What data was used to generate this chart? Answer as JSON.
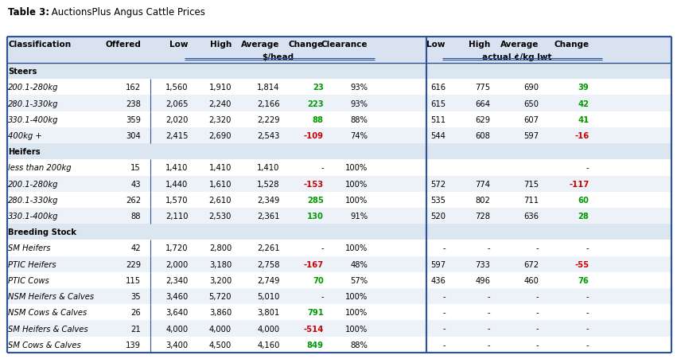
{
  "title_bold": "Table 3:",
  "title_regular": " AuctionsPlus Angus Cattle Prices",
  "col_headers": [
    "Classification",
    "Offered",
    "Low",
    "High",
    "Average",
    "Change",
    "Clearance",
    "Low",
    "High",
    "Average",
    "Change"
  ],
  "sub_head1": "$/head",
  "sub_head2": "actual ¢/kg lwt",
  "sections": [
    {
      "name": "Steers",
      "rows": [
        {
          "class": "200.1-280kg",
          "offered": "162",
          "low": "1,560",
          "high": "1,910",
          "avg": "1,814",
          "change": "23",
          "clearance": "93%",
          "low2": "616",
          "high2": "775",
          "avg2": "690",
          "change2": "39",
          "cc": "#009900",
          "cc2": "#009900"
        },
        {
          "class": "280.1-330kg",
          "offered": "238",
          "low": "2,065",
          "high": "2,240",
          "avg": "2,166",
          "change": "223",
          "clearance": "93%",
          "low2": "615",
          "high2": "664",
          "avg2": "650",
          "change2": "42",
          "cc": "#009900",
          "cc2": "#009900"
        },
        {
          "class": "330.1-400kg",
          "offered": "359",
          "low": "2,020",
          "high": "2,320",
          "avg": "2,229",
          "change": "88",
          "clearance": "88%",
          "low2": "511",
          "high2": "629",
          "avg2": "607",
          "change2": "41",
          "cc": "#009900",
          "cc2": "#009900"
        },
        {
          "class": "400kg +",
          "offered": "304",
          "low": "2,415",
          "high": "2,690",
          "avg": "2,543",
          "change": "-109",
          "clearance": "74%",
          "low2": "544",
          "high2": "608",
          "avg2": "597",
          "change2": "-16",
          "cc": "#cc0000",
          "cc2": "#cc0000"
        }
      ]
    },
    {
      "name": "Heifers",
      "rows": [
        {
          "class": "less than 200kg",
          "offered": "15",
          "low": "1,410",
          "high": "1,410",
          "avg": "1,410",
          "change": "-",
          "clearance": "100%",
          "low2": "",
          "high2": "",
          "avg2": "",
          "change2": "-",
          "cc": "#000000",
          "cc2": "#000000"
        },
        {
          "class": "200.1-280kg",
          "offered": "43",
          "low": "1,440",
          "high": "1,610",
          "avg": "1,528",
          "change": "-153",
          "clearance": "100%",
          "low2": "572",
          "high2": "774",
          "avg2": "715",
          "change2": "-117",
          "cc": "#cc0000",
          "cc2": "#cc0000"
        },
        {
          "class": "280.1-330kg",
          "offered": "262",
          "low": "1,570",
          "high": "2,610",
          "avg": "2,349",
          "change": "285",
          "clearance": "100%",
          "low2": "535",
          "high2": "802",
          "avg2": "711",
          "change2": "60",
          "cc": "#009900",
          "cc2": "#009900"
        },
        {
          "class": "330.1-400kg",
          "offered": "88",
          "low": "2,110",
          "high": "2,530",
          "avg": "2,361",
          "change": "130",
          "clearance": "91%",
          "low2": "520",
          "high2": "728",
          "avg2": "636",
          "change2": "28",
          "cc": "#009900",
          "cc2": "#009900"
        }
      ]
    },
    {
      "name": "Breeding Stock",
      "rows": [
        {
          "class": "SM Heifers",
          "offered": "42",
          "low": "1,720",
          "high": "2,800",
          "avg": "2,261",
          "change": "-",
          "clearance": "100%",
          "low2": "-",
          "high2": "-",
          "avg2": "-",
          "change2": "-",
          "cc": "#000000",
          "cc2": "#000000"
        },
        {
          "class": "PTIC Heifers",
          "offered": "229",
          "low": "2,000",
          "high": "3,180",
          "avg": "2,758",
          "change": "-167",
          "clearance": "48%",
          "low2": "597",
          "high2": "733",
          "avg2": "672",
          "change2": "-55",
          "cc": "#cc0000",
          "cc2": "#cc0000"
        },
        {
          "class": "PTIC Cows",
          "offered": "115",
          "low": "2,340",
          "high": "3,200",
          "avg": "2,749",
          "change": "70",
          "clearance": "57%",
          "low2": "436",
          "high2": "496",
          "avg2": "460",
          "change2": "76",
          "cc": "#009900",
          "cc2": "#009900"
        },
        {
          "class": "NSM Heifers & Calves",
          "offered": "35",
          "low": "3,460",
          "high": "5,720",
          "avg": "5,010",
          "change": "-",
          "clearance": "100%",
          "low2": "-",
          "high2": "-",
          "avg2": "-",
          "change2": "-",
          "cc": "#000000",
          "cc2": "#000000"
        },
        {
          "class": "NSM Cows & Calves",
          "offered": "26",
          "low": "3,640",
          "high": "3,860",
          "avg": "3,801",
          "change": "791",
          "clearance": "100%",
          "low2": "-",
          "high2": "-",
          "avg2": "-",
          "change2": "-",
          "cc": "#009900",
          "cc2": "#000000"
        },
        {
          "class": "SM Heifers & Calves",
          "offered": "21",
          "low": "4,000",
          "high": "4,000",
          "avg": "4,000",
          "change": "-514",
          "clearance": "100%",
          "low2": "-",
          "high2": "-",
          "avg2": "-",
          "change2": "-",
          "cc": "#cc0000",
          "cc2": "#000000"
        },
        {
          "class": "SM Cows & Calves",
          "offered": "139",
          "low": "3,400",
          "high": "4,500",
          "avg": "4,160",
          "change": "849",
          "clearance": "88%",
          "low2": "-",
          "high2": "-",
          "avg2": "-",
          "change2": "-",
          "cc": "#009900",
          "cc2": "#000000"
        }
      ]
    }
  ],
  "bg_color": "#ffffff",
  "header_bg": "#d9e2f0",
  "border_color": "#2f5496",
  "text_color": "#000000"
}
